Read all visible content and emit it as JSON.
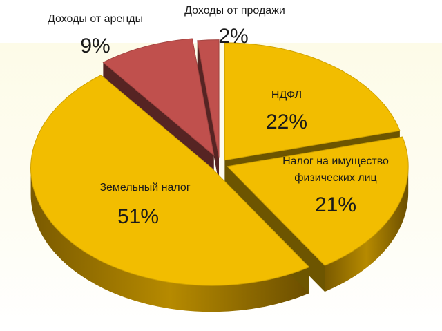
{
  "chart_data": {
    "type": "pie",
    "style": "3d-exploded",
    "slices": [
      {
        "label": "НДФЛ",
        "value": 22,
        "value_label": "22%",
        "color": "#f2bd00"
      },
      {
        "label": "Налог на имущество физических лиц",
        "value": 21,
        "value_label": "21%",
        "color": "#f2bd00"
      },
      {
        "label": "Земельный налог",
        "value": 51,
        "value_label": "51%",
        "color": "#f2bd00"
      },
      {
        "label": "Доходы от аренды",
        "value": 9,
        "value_label": "9%",
        "color": "#c0504d"
      },
      {
        "label": "Доходы от продажи",
        "value": 2,
        "value_label": "2%",
        "color": "#c0504d"
      }
    ]
  }
}
